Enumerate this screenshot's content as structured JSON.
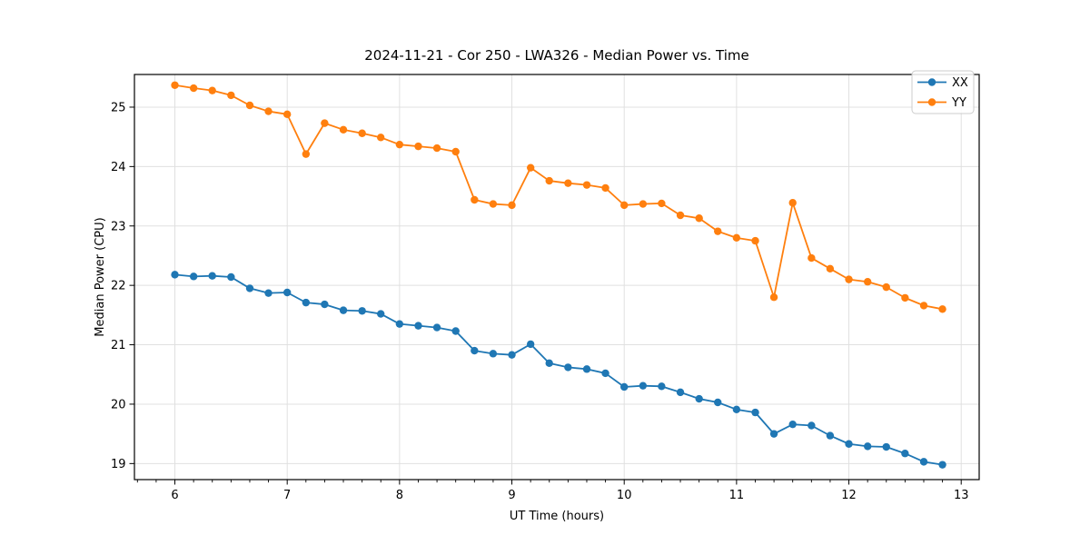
{
  "chart_data": {
    "type": "line",
    "title": "2024-11-21 - Cor 250 - LWA326 - Median Power vs. Time",
    "xlabel": "UT Time (hours)",
    "ylabel": "Median Power (CPU)",
    "xlim": [
      5.64,
      13.16
    ],
    "ylim": [
      18.73,
      25.55
    ],
    "xticks": [
      6,
      7,
      8,
      9,
      10,
      11,
      12,
      13
    ],
    "yticks": [
      19,
      20,
      21,
      22,
      23,
      24,
      25
    ],
    "minor_xtick_step_hours": 0.1667,
    "grid": true,
    "legend_position": "upper right",
    "background_color": "#ffffff",
    "grid_color": "#e0e0e0",
    "x": [
      6.0,
      6.167,
      6.333,
      6.5,
      6.667,
      6.833,
      7.0,
      7.167,
      7.333,
      7.5,
      7.667,
      7.833,
      8.0,
      8.167,
      8.333,
      8.5,
      8.667,
      8.833,
      9.0,
      9.167,
      9.333,
      9.5,
      9.667,
      9.833,
      10.0,
      10.167,
      10.333,
      10.5,
      10.667,
      10.833,
      11.0,
      11.167,
      11.333,
      11.5,
      11.667,
      11.833,
      12.0,
      12.167,
      12.333,
      12.5,
      12.667,
      12.833
    ],
    "series": [
      {
        "name": "XX",
        "color": "#1f77b4",
        "values": [
          22.18,
          22.15,
          22.16,
          22.14,
          21.95,
          21.87,
          21.88,
          21.71,
          21.68,
          21.58,
          21.57,
          21.52,
          21.35,
          21.32,
          21.29,
          21.23,
          20.9,
          20.85,
          20.83,
          21.01,
          20.69,
          20.62,
          20.59,
          20.52,
          20.29,
          20.31,
          20.3,
          20.2,
          20.09,
          20.03,
          19.91,
          19.86,
          19.5,
          19.66,
          19.64,
          19.47,
          19.33,
          19.29,
          19.28,
          19.17,
          19.03,
          18.98
        ]
      },
      {
        "name": "YY",
        "color": "#ff7f0e",
        "values": [
          25.37,
          25.32,
          25.28,
          25.2,
          25.03,
          24.93,
          24.88,
          24.21,
          24.73,
          24.62,
          24.56,
          24.49,
          24.37,
          24.34,
          24.31,
          24.25,
          23.44,
          23.37,
          23.35,
          23.98,
          23.76,
          23.72,
          23.69,
          23.64,
          23.35,
          23.37,
          23.38,
          23.18,
          23.13,
          22.91,
          22.8,
          22.75,
          21.8,
          23.39,
          22.46,
          22.28,
          22.1,
          22.06,
          21.97,
          21.79,
          21.66,
          21.6
        ]
      }
    ]
  }
}
